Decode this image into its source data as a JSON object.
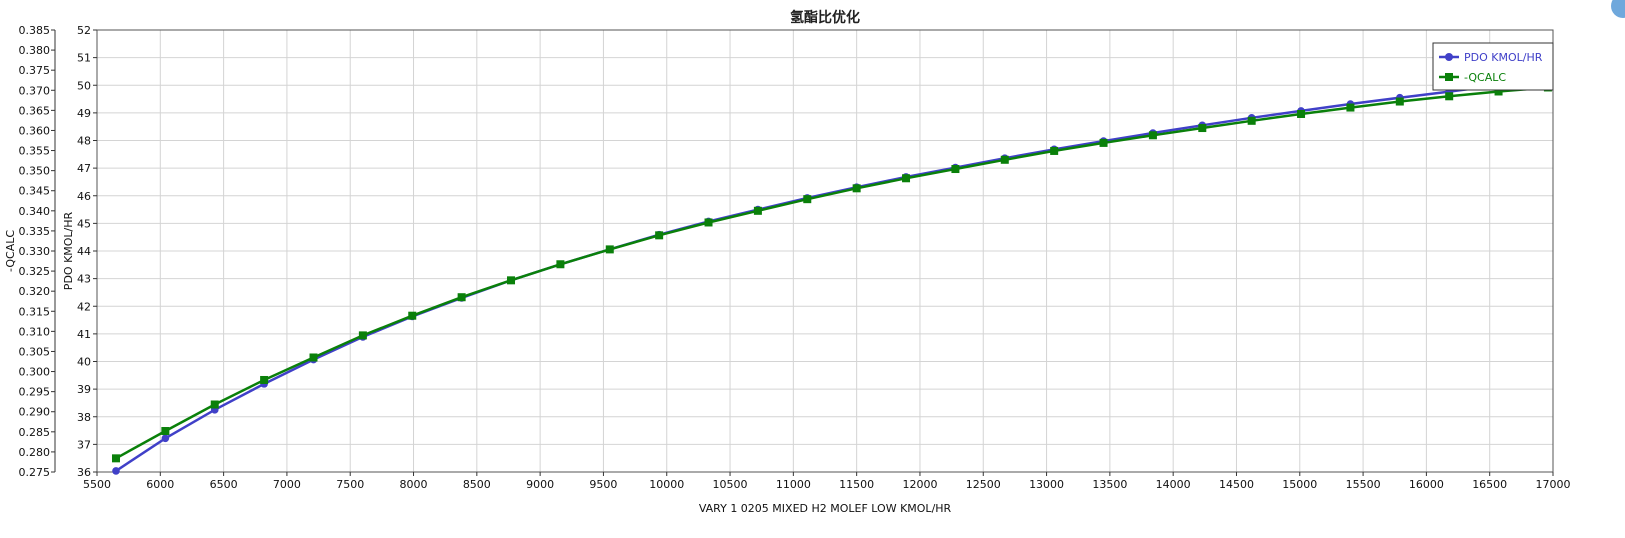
{
  "chart_data": {
    "type": "line",
    "title": "氢酯比优化",
    "xlabel": "VARY   1 0205 MIXED H2 MOLEF LOW KMOL/HR",
    "ylabel_left_outer": "-QCALC",
    "ylabel_left_inner": "PDO KMOL/HR",
    "xlim": [
      5500,
      17000
    ],
    "xticks": [
      5500,
      6000,
      6500,
      7000,
      7500,
      8000,
      8500,
      9000,
      9500,
      10000,
      10500,
      11000,
      11500,
      12000,
      12500,
      13000,
      13500,
      14000,
      14500,
      15000,
      15500,
      16000,
      16500,
      17000
    ],
    "ylim_outer": [
      0.275,
      0.385
    ],
    "yticks_outer": [
      "0.275",
      "0.280",
      "0.285",
      "0.290",
      "0.295",
      "0.300",
      "0.305",
      "0.310",
      "0.315",
      "0.320",
      "0.325",
      "0.330",
      "0.335",
      "0.340",
      "0.345",
      "0.350",
      "0.355",
      "0.360",
      "0.365",
      "0.370",
      "0.375",
      "0.380",
      "0.385"
    ],
    "ylim_inner": [
      36,
      52
    ],
    "yticks_inner": [
      "36",
      "37",
      "38",
      "39",
      "40",
      "41",
      "42",
      "43",
      "44",
      "45",
      "46",
      "47",
      "48",
      "49",
      "50",
      "51",
      "52"
    ],
    "grid": true,
    "legend_position": "top-right",
    "x": [
      5650,
      6040,
      6430,
      6820,
      7210,
      7600,
      7990,
      8380,
      8770,
      9160,
      9550,
      9940,
      10330,
      10720,
      11110,
      11500,
      11890,
      12280,
      12670,
      13060,
      13450,
      13840,
      14230,
      14620,
      15010,
      15400,
      15790,
      16180,
      16570,
      16960
    ],
    "series": [
      {
        "name": "PDO KMOL/HR",
        "axis": "inner",
        "color": "#4040c8",
        "marker": "circle",
        "values": [
          36.04,
          37.22,
          38.25,
          39.19,
          40.07,
          40.89,
          41.63,
          42.3,
          42.94,
          43.52,
          44.06,
          44.59,
          45.07,
          45.5,
          45.92,
          46.31,
          46.68,
          47.02,
          47.36,
          47.68,
          47.98,
          48.27,
          48.55,
          48.82,
          49.07,
          49.32,
          49.55,
          49.77,
          50.0,
          50.2
        ]
      },
      {
        "name": "-QCALC",
        "axis": "outer",
        "color": "#0a800a",
        "marker": "square",
        "values": [
          0.2784,
          0.2852,
          0.2918,
          0.2979,
          0.3035,
          0.309,
          0.3139,
          0.3185,
          0.3227,
          0.3267,
          0.3304,
          0.3339,
          0.3371,
          0.34,
          0.3429,
          0.3456,
          0.3481,
          0.3504,
          0.3527,
          0.3549,
          0.3569,
          0.3588,
          0.3606,
          0.3624,
          0.3641,
          0.3657,
          0.3672,
          0.3685,
          0.3697,
          0.3707
        ]
      }
    ]
  }
}
